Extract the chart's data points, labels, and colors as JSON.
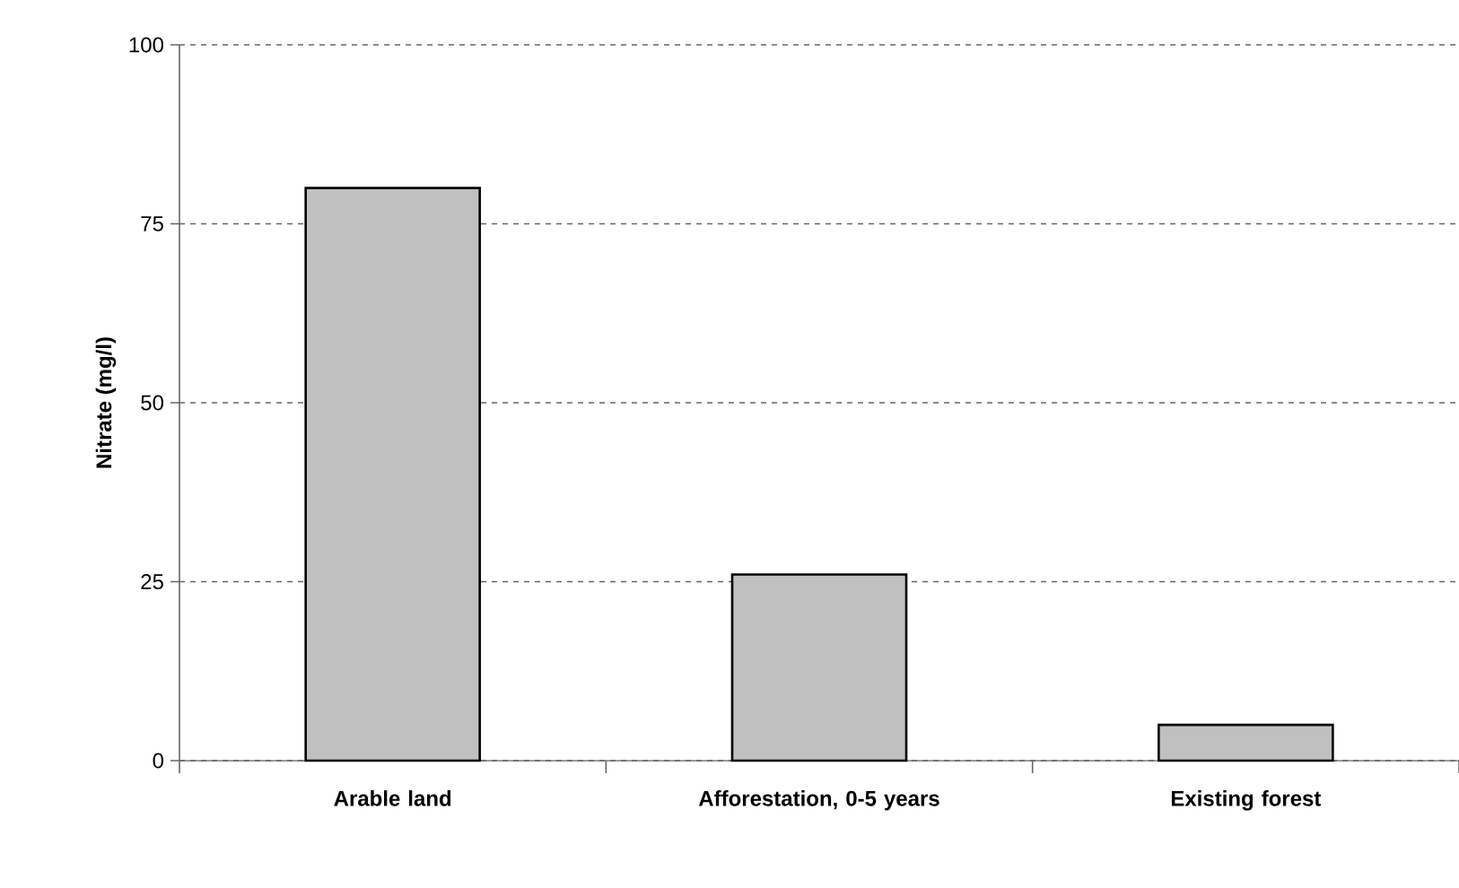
{
  "chart_data": {
    "type": "bar",
    "ylabel": "Nitrate (mg/l)",
    "categories": [
      "Arable land",
      "Afforestation, 0-5 years",
      "Existing forest"
    ],
    "values": [
      80,
      26,
      5
    ],
    "color": "#c0c0c0",
    "ylim": [
      0,
      100
    ],
    "yticks": [
      0,
      25,
      50,
      75,
      100
    ],
    "grid": "y"
  }
}
